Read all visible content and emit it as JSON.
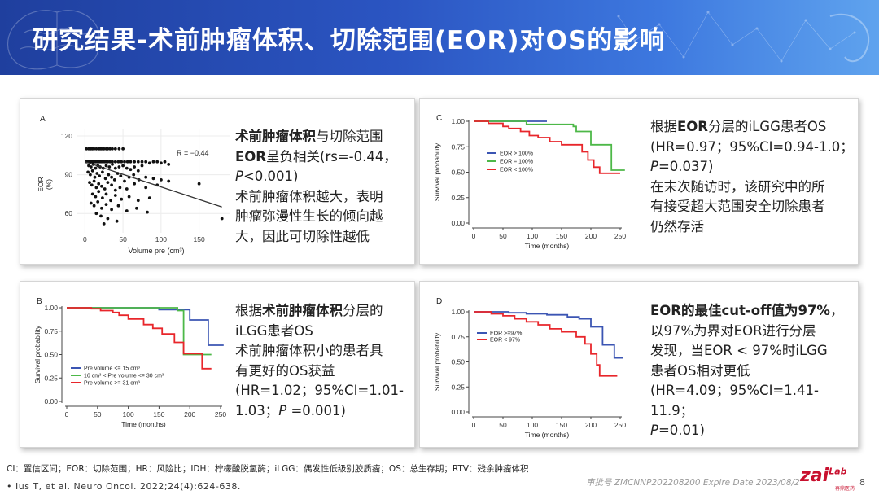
{
  "slide": {
    "title": "研究结果-术前肿瘤体积、切除范围(EOR)对OS的影响",
    "page_number": "8"
  },
  "panels": {
    "a": {
      "letter": "A",
      "r_label": "R = −0.44",
      "ylabel_line1": "EOR",
      "ylabel_line2": "(%)",
      "xlabel": "Volume pre (cm³)",
      "text_bold1": "术前肿瘤体积",
      "text_1": "与切除范围",
      "text_bold2": "EOR",
      "text_2": "呈负相关(rs=-0.44，",
      "text_p": "P",
      "text_3": "<0.001)",
      "text_4": "术前肿瘤体积越大，表明",
      "text_5": "肿瘤弥漫性生长的倾向越",
      "text_6": "大，因此可切除性越低"
    },
    "b": {
      "letter": "B",
      "ylabel": "Survival probability",
      "xlabel": "Time (months)",
      "text_1": "根据",
      "text_bold": "术前肿瘤体积",
      "text_2": "分层的",
      "text_3": "iLGG患者OS",
      "text_4": "术前肿瘤体积小的患者具",
      "text_5": "有更好的OS获益",
      "text_6": "(HR=1.02；95%CI=1.01-",
      "text_7a": "1.03；",
      "text_p": "P",
      "text_7b": " =0.001)"
    },
    "c": {
      "letter": "C",
      "ylabel": "Survival probability",
      "xlabel": "Time (months)",
      "text_1": "根据",
      "text_bold": "EOR",
      "text_2": "分层的iLGG患者OS",
      "text_3": "(HR=0.97；95%CI=0.94-1.0；",
      "text_p": "P",
      "text_4": "=0.037)",
      "text_5": "在末次随访时，该研究中的所",
      "text_6": "有接受超大范围安全切除患者",
      "text_7": "仍然存活"
    },
    "d": {
      "letter": "D",
      "ylabel": "Survival probability",
      "xlabel": "Time (months)",
      "text_bold": "EOR的最佳cut-off值为97%",
      "text_1": "，",
      "text_2": "以97%为界对EOR进行分层",
      "text_3": "发现，当EOR < 97%时iLGG",
      "text_4": "患者OS相对更低",
      "text_5": "(HR=4.09；95%CI=1.41-11.9；",
      "text_p": "P",
      "text_6": "=0.01)"
    }
  },
  "footer": {
    "abbreviations": "CI：置信区间；EOR：切除范围；HR：风险比；IDH：柠檬酸脱氢酶；iLGG：偶发性低级别胶质瘤；OS：总生存期；RTV：残余肿瘤体积",
    "reference": "•  Ius T, et al. Neuro Oncol. 2022;24(4):624-638.",
    "approval": "审批号 ZMCNNP202208200 Expire Date 2023/08/2",
    "logo": "zai",
    "logo_small": "Lab",
    "logo_sub": "再鼎医药"
  },
  "chart_data": [
    {
      "id": "A",
      "type": "scatter",
      "title": "",
      "xlabel": "Volume pre (cm³)",
      "ylabel": "EOR (%)",
      "xlim": [
        -10,
        190
      ],
      "ylim": [
        45,
        125
      ],
      "x_ticks": [
        0,
        50,
        100,
        150
      ],
      "y_ticks": [
        60,
        90,
        120
      ],
      "annotation": "R = −0.44",
      "trend_line": {
        "x": [
          0,
          180
        ],
        "y": [
          100,
          65
        ]
      },
      "points": [
        [
          2,
          110
        ],
        [
          5,
          110
        ],
        [
          8,
          110
        ],
        [
          10,
          110
        ],
        [
          12,
          110
        ],
        [
          15,
          110
        ],
        [
          18,
          110
        ],
        [
          20,
          110
        ],
        [
          22,
          110
        ],
        [
          25,
          110
        ],
        [
          28,
          110
        ],
        [
          30,
          110
        ],
        [
          33,
          110
        ],
        [
          36,
          110
        ],
        [
          40,
          110
        ],
        [
          45,
          110
        ],
        [
          50,
          110
        ],
        [
          2,
          100
        ],
        [
          4,
          100
        ],
        [
          6,
          100
        ],
        [
          8,
          100
        ],
        [
          10,
          100
        ],
        [
          12,
          100
        ],
        [
          14,
          100
        ],
        [
          16,
          100
        ],
        [
          18,
          100
        ],
        [
          20,
          100
        ],
        [
          22,
          100
        ],
        [
          24,
          100
        ],
        [
          26,
          100
        ],
        [
          28,
          100
        ],
        [
          30,
          100
        ],
        [
          33,
          100
        ],
        [
          36,
          100
        ],
        [
          40,
          100
        ],
        [
          44,
          100
        ],
        [
          48,
          100
        ],
        [
          52,
          100
        ],
        [
          56,
          100
        ],
        [
          60,
          100
        ],
        [
          65,
          100
        ],
        [
          70,
          100
        ],
        [
          75,
          100
        ],
        [
          80,
          100
        ],
        [
          85,
          99
        ],
        [
          90,
          100
        ],
        [
          95,
          100
        ],
        [
          100,
          99
        ],
        [
          105,
          100
        ],
        [
          110,
          98
        ],
        [
          5,
          97
        ],
        [
          8,
          96
        ],
        [
          11,
          98
        ],
        [
          14,
          95
        ],
        [
          17,
          97
        ],
        [
          20,
          96
        ],
        [
          24,
          95
        ],
        [
          28,
          97
        ],
        [
          32,
          96
        ],
        [
          36,
          98
        ],
        [
          40,
          95
        ],
        [
          45,
          96
        ],
        [
          50,
          97
        ],
        [
          55,
          95
        ],
        [
          60,
          94
        ],
        [
          65,
          96
        ],
        [
          70,
          93
        ],
        [
          75,
          97
        ],
        [
          4,
          92
        ],
        [
          7,
          90
        ],
        [
          10,
          93
        ],
        [
          13,
          88
        ],
        [
          16,
          91
        ],
        [
          19,
          89
        ],
        [
          23,
          92
        ],
        [
          27,
          87
        ],
        [
          31,
          90
        ],
        [
          35,
          88
        ],
        [
          39,
          86
        ],
        [
          43,
          91
        ],
        [
          47,
          89
        ],
        [
          52,
          85
        ],
        [
          58,
          88
        ],
        [
          64,
          90
        ],
        [
          71,
          86
        ],
        [
          80,
          88
        ],
        [
          90,
          87
        ],
        [
          100,
          86
        ],
        [
          110,
          85
        ],
        [
          6,
          84
        ],
        [
          9,
          82
        ],
        [
          12,
          85
        ],
        [
          15,
          80
        ],
        [
          18,
          83
        ],
        [
          22,
          81
        ],
        [
          26,
          79
        ],
        [
          30,
          84
        ],
        [
          35,
          82
        ],
        [
          40,
          78
        ],
        [
          46,
          80
        ],
        [
          55,
          79
        ],
        [
          65,
          83
        ],
        [
          80,
          80
        ],
        [
          95,
          82
        ],
        [
          150,
          83
        ],
        [
          10,
          75
        ],
        [
          14,
          73
        ],
        [
          18,
          77
        ],
        [
          23,
          72
        ],
        [
          28,
          75
        ],
        [
          34,
          70
        ],
        [
          40,
          74
        ],
        [
          48,
          71
        ],
        [
          58,
          73
        ],
        [
          70,
          70
        ],
        [
          85,
          72
        ],
        [
          8,
          68
        ],
        [
          12,
          66
        ],
        [
          17,
          69
        ],
        [
          22,
          64
        ],
        [
          28,
          67
        ],
        [
          35,
          63
        ],
        [
          44,
          66
        ],
        [
          55,
          62
        ],
        [
          68,
          64
        ],
        [
          82,
          61
        ],
        [
          15,
          60
        ],
        [
          21,
          58
        ],
        [
          30,
          56
        ],
        [
          42,
          54
        ],
        [
          25,
          52
        ],
        [
          180,
          56
        ]
      ]
    },
    {
      "id": "B",
      "type": "line",
      "title": "",
      "xlabel": "Time (months)",
      "ylabel": "Survival probability",
      "xlim": [
        0,
        250
      ],
      "ylim": [
        0,
        1
      ],
      "x_ticks": [
        0,
        50,
        100,
        150,
        200,
        250
      ],
      "y_ticks": [
        0.0,
        0.25,
        0.5,
        0.75,
        1.0
      ],
      "series": [
        {
          "name": "Pre volume <= 15 cm³",
          "color": "#3b55b3",
          "points": [
            [
              0,
              1.0
            ],
            [
              150,
              1.0
            ],
            [
              150,
              0.98
            ],
            [
              200,
              0.98
            ],
            [
              200,
              0.87
            ],
            [
              230,
              0.87
            ],
            [
              230,
              0.6
            ],
            [
              255,
              0.6
            ]
          ]
        },
        {
          "name": "16 cm³ < Pre volume <= 30 cm³",
          "color": "#4db848",
          "points": [
            [
              0,
              1.0
            ],
            [
              180,
              1.0
            ],
            [
              180,
              0.97
            ],
            [
              190,
              0.97
            ],
            [
              190,
              0.5
            ],
            [
              235,
              0.5
            ]
          ]
        },
        {
          "name": "Pre volume >= 31 cm³",
          "color": "#e8262b",
          "points": [
            [
              0,
              1.0
            ],
            [
              40,
              1.0
            ],
            [
              40,
              0.99
            ],
            [
              55,
              0.99
            ],
            [
              55,
              0.97
            ],
            [
              75,
              0.97
            ],
            [
              75,
              0.95
            ],
            [
              85,
              0.95
            ],
            [
              85,
              0.92
            ],
            [
              100,
              0.92
            ],
            [
              100,
              0.88
            ],
            [
              125,
              0.88
            ],
            [
              125,
              0.82
            ],
            [
              140,
              0.82
            ],
            [
              140,
              0.78
            ],
            [
              155,
              0.78
            ],
            [
              155,
              0.72
            ],
            [
              175,
              0.72
            ],
            [
              175,
              0.63
            ],
            [
              190,
              0.63
            ],
            [
              190,
              0.51
            ],
            [
              220,
              0.51
            ],
            [
              220,
              0.35
            ],
            [
              235,
              0.35
            ]
          ]
        }
      ]
    },
    {
      "id": "C",
      "type": "line",
      "title": "",
      "xlabel": "Time (months)",
      "ylabel": "Survival probability",
      "xlim": [
        0,
        250
      ],
      "ylim": [
        0,
        1
      ],
      "x_ticks": [
        0,
        50,
        100,
        150,
        200,
        250
      ],
      "y_ticks": [
        0.0,
        0.25,
        0.5,
        0.75,
        1.0
      ],
      "series": [
        {
          "name": "EOR > 100%",
          "color": "#3b55b3",
          "points": [
            [
              0,
              1.0
            ],
            [
              125,
              1.0
            ]
          ]
        },
        {
          "name": "EOR = 100%",
          "color": "#4db848",
          "points": [
            [
              0,
              1.0
            ],
            [
              90,
              1.0
            ],
            [
              90,
              0.97
            ],
            [
              170,
              0.97
            ],
            [
              170,
              0.95
            ],
            [
              175,
              0.95
            ],
            [
              175,
              0.9
            ],
            [
              200,
              0.9
            ],
            [
              200,
              0.77
            ],
            [
              235,
              0.77
            ],
            [
              235,
              0.52
            ],
            [
              258,
              0.52
            ]
          ]
        },
        {
          "name": "EOR < 100%",
          "color": "#e8262b",
          "points": [
            [
              0,
              1.0
            ],
            [
              25,
              1.0
            ],
            [
              25,
              0.98
            ],
            [
              50,
              0.98
            ],
            [
              50,
              0.95
            ],
            [
              60,
              0.95
            ],
            [
              60,
              0.93
            ],
            [
              80,
              0.93
            ],
            [
              80,
              0.9
            ],
            [
              95,
              0.9
            ],
            [
              95,
              0.86
            ],
            [
              110,
              0.86
            ],
            [
              110,
              0.84
            ],
            [
              130,
              0.84
            ],
            [
              130,
              0.8
            ],
            [
              150,
              0.8
            ],
            [
              150,
              0.77
            ],
            [
              185,
              0.77
            ],
            [
              185,
              0.7
            ],
            [
              195,
              0.7
            ],
            [
              195,
              0.62
            ],
            [
              205,
              0.62
            ],
            [
              205,
              0.55
            ],
            [
              215,
              0.55
            ],
            [
              215,
              0.49
            ],
            [
              250,
              0.49
            ]
          ]
        }
      ]
    },
    {
      "id": "D",
      "type": "line",
      "title": "",
      "xlabel": "Time (months)",
      "ylabel": "Survival probability",
      "xlim": [
        0,
        250
      ],
      "ylim": [
        0,
        1
      ],
      "x_ticks": [
        0,
        50,
        100,
        150,
        200,
        250
      ],
      "y_ticks": [
        0.0,
        0.25,
        0.5,
        0.75,
        1.0
      ],
      "series": [
        {
          "name": "EOR >=97%",
          "color": "#3b55b3",
          "points": [
            [
              0,
              1.0
            ],
            [
              60,
              1.0
            ],
            [
              60,
              0.99
            ],
            [
              90,
              0.99
            ],
            [
              90,
              0.98
            ],
            [
              125,
              0.98
            ],
            [
              125,
              0.97
            ],
            [
              160,
              0.97
            ],
            [
              160,
              0.95
            ],
            [
              180,
              0.95
            ],
            [
              180,
              0.93
            ],
            [
              200,
              0.93
            ],
            [
              200,
              0.85
            ],
            [
              220,
              0.85
            ],
            [
              220,
              0.67
            ],
            [
              240,
              0.67
            ],
            [
              240,
              0.54
            ],
            [
              255,
              0.54
            ]
          ]
        },
        {
          "name": "EOR < 97%",
          "color": "#e8262b",
          "points": [
            [
              0,
              1.0
            ],
            [
              30,
              1.0
            ],
            [
              30,
              0.98
            ],
            [
              50,
              0.98
            ],
            [
              50,
              0.96
            ],
            [
              70,
              0.96
            ],
            [
              70,
              0.93
            ],
            [
              90,
              0.93
            ],
            [
              90,
              0.9
            ],
            [
              110,
              0.9
            ],
            [
              110,
              0.87
            ],
            [
              130,
              0.87
            ],
            [
              130,
              0.83
            ],
            [
              150,
              0.83
            ],
            [
              150,
              0.8
            ],
            [
              175,
              0.8
            ],
            [
              175,
              0.75
            ],
            [
              190,
              0.75
            ],
            [
              190,
              0.68
            ],
            [
              200,
              0.68
            ],
            [
              200,
              0.58
            ],
            [
              210,
              0.58
            ],
            [
              210,
              0.47
            ],
            [
              215,
              0.47
            ],
            [
              215,
              0.36
            ],
            [
              245,
              0.36
            ]
          ]
        }
      ]
    }
  ]
}
